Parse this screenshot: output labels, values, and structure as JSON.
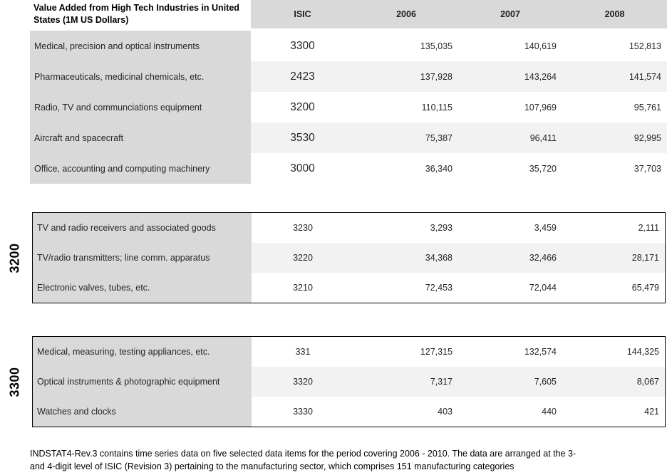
{
  "colors": {
    "table_gray": "#d9d9d9",
    "band_gray": "#f2f2f2",
    "border_black": "#000000",
    "text_dark": "#262626"
  },
  "main_table": {
    "title_lines": [
      "Value Added from High Tech Industries in United",
      "States (1M US Dollars)"
    ],
    "columns": [
      "ISIC",
      "2006",
      "2007",
      "2008"
    ],
    "rows": [
      {
        "label": "Medical, precision and optical instruments",
        "isic": "3300",
        "values": [
          "135,035",
          "140,619",
          "152,813"
        ]
      },
      {
        "label": "Pharmaceuticals, medicinal chemicals, etc.",
        "isic": "2423",
        "values": [
          "137,928",
          "143,264",
          "141,574"
        ]
      },
      {
        "label": "Radio, TV and communciations equipment",
        "isic": "3200",
        "values": [
          "110,115",
          "107,969",
          "95,761"
        ]
      },
      {
        "label": "Aircraft and spacecraft",
        "isic": "3530",
        "values": [
          "75,387",
          "96,411",
          "92,995"
        ]
      },
      {
        "label": "Office, accounting and computing machinery",
        "isic": "3000",
        "values": [
          "36,340",
          "35,720",
          "37,703"
        ]
      }
    ]
  },
  "group_3200": {
    "group_label": "3200",
    "rows": [
      {
        "label": "TV and radio receivers and associated goods",
        "isic": "3230",
        "values": [
          "3,293",
          "3,459",
          "2,111"
        ]
      },
      {
        "label": "TV/radio transmitters; line comm. apparatus",
        "isic": "3220",
        "values": [
          "34,368",
          "32,466",
          "28,171"
        ]
      },
      {
        "label": "Electronic valves, tubes, etc.",
        "isic": "3210",
        "values": [
          "72,453",
          "72,044",
          "65,479"
        ]
      }
    ]
  },
  "group_3300": {
    "group_label": "3300",
    "rows": [
      {
        "label": "Medical, measuring, testing appliances, etc.",
        "isic": "331",
        "values": [
          "127,315",
          "132,574",
          "144,325"
        ]
      },
      {
        "label": "Optical instruments & photographic equipment",
        "isic": "3320",
        "values": [
          "7,317",
          "7,605",
          "8,067"
        ]
      },
      {
        "label": "Watches and clocks",
        "isic": "3330",
        "values": [
          "403",
          "440",
          "421"
        ]
      }
    ]
  },
  "footer_lines": [
    "INDSTAT4-Rev.3 contains time series data on five selected data items for the period covering 2006 - 2010. The data are arranged at the 3-",
    "and 4-digit level of ISIC (Revision 3) pertaining to the manufacturing sector, which comprises 151 manufacturing categories"
  ]
}
